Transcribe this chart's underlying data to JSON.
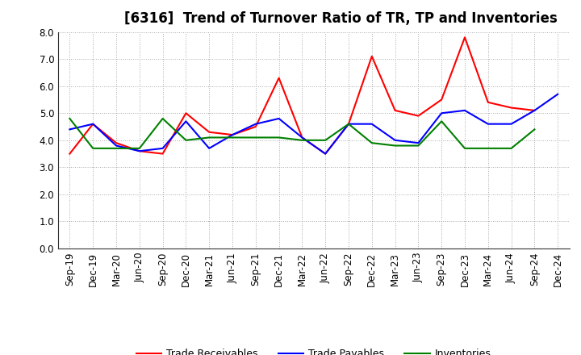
{
  "title": "[6316]  Trend of Turnover Ratio of TR, TP and Inventories",
  "x_labels": [
    "Sep-19",
    "Dec-19",
    "Mar-20",
    "Jun-20",
    "Sep-20",
    "Dec-20",
    "Mar-21",
    "Jun-21",
    "Sep-21",
    "Dec-21",
    "Mar-22",
    "Jun-22",
    "Sep-22",
    "Dec-22",
    "Mar-23",
    "Jun-23",
    "Sep-23",
    "Dec-23",
    "Mar-24",
    "Jun-24",
    "Sep-24",
    "Dec-24"
  ],
  "trade_receivables": [
    3.5,
    4.6,
    3.9,
    3.6,
    3.5,
    5.0,
    4.3,
    4.2,
    4.5,
    6.3,
    4.1,
    3.5,
    4.6,
    7.1,
    5.1,
    4.9,
    5.5,
    7.8,
    5.4,
    5.2,
    5.1,
    null
  ],
  "trade_payables": [
    4.4,
    4.6,
    3.8,
    3.6,
    3.7,
    4.7,
    3.7,
    4.2,
    4.6,
    4.8,
    4.1,
    3.5,
    4.6,
    4.6,
    4.0,
    3.9,
    5.0,
    5.1,
    4.6,
    4.6,
    5.1,
    5.7
  ],
  "inventories": [
    4.8,
    3.7,
    3.7,
    3.7,
    4.8,
    4.0,
    4.1,
    4.1,
    4.1,
    4.1,
    4.0,
    4.0,
    4.6,
    3.9,
    3.8,
    3.8,
    4.7,
    3.7,
    3.7,
    3.7,
    4.4,
    null
  ],
  "ylim": [
    0.0,
    8.0
  ],
  "yticks": [
    0.0,
    1.0,
    2.0,
    3.0,
    4.0,
    5.0,
    6.0,
    7.0,
    8.0
  ],
  "line_colors": {
    "trade_receivables": "#ff0000",
    "trade_payables": "#0000ff",
    "inventories": "#008000"
  },
  "legend_labels": [
    "Trade Receivables",
    "Trade Payables",
    "Inventories"
  ],
  "background_color": "#ffffff",
  "grid_color": "#aaaaaa",
  "title_fontsize": 12,
  "axis_fontsize": 8.5
}
